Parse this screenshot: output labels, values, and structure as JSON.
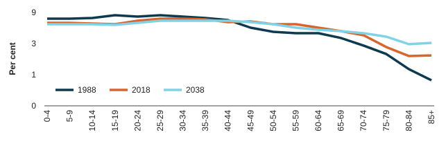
{
  "chart_data": {
    "type": "line",
    "y_label": "Per cent",
    "categories": [
      "0-4",
      "5-9",
      "10-14",
      "15-19",
      "20-24",
      "25-29",
      "30-34",
      "35-39",
      "40-44",
      "45-49",
      "50-54",
      "55-59",
      "60-64",
      "65-69",
      "70-74",
      "75-79",
      "80-84",
      "85+"
    ],
    "series": [
      {
        "name": "1988",
        "color": "#0d3a4e",
        "values": [
          7.8,
          7.8,
          7.93,
          8.47,
          8.2,
          8.47,
          8.2,
          7.93,
          7.53,
          6.07,
          5.27,
          5.0,
          5.0,
          4.07,
          2.87,
          2.33,
          1.36,
          0.82
        ]
      },
      {
        "name": "2018",
        "color": "#d9652b",
        "values": [
          7.0,
          7.0,
          6.87,
          6.73,
          7.4,
          7.8,
          7.8,
          7.67,
          7.13,
          7.27,
          6.73,
          6.73,
          6.07,
          5.4,
          4.6,
          2.78,
          2.2,
          2.24
        ]
      },
      {
        "name": "2038",
        "color": "#80d3e6",
        "values": [
          6.73,
          6.73,
          6.73,
          6.6,
          7.0,
          7.4,
          7.4,
          7.4,
          7.4,
          7.13,
          6.73,
          6.07,
          5.67,
          5.4,
          5.0,
          4.33,
          2.96,
          3.13
        ]
      }
    ],
    "ylim": [
      0,
      9
    ],
    "yticks": [
      0,
      1,
      3,
      9
    ],
    "legend": "lower-left"
  }
}
